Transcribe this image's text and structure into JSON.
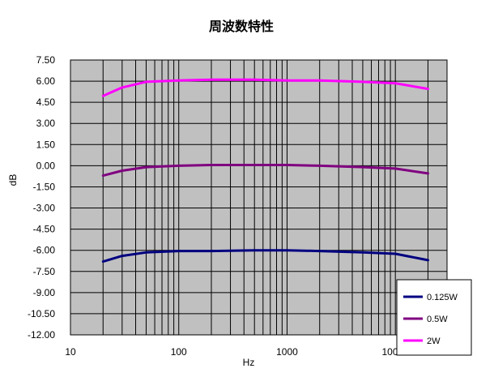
{
  "chart_data": {
    "type": "line",
    "title": "周波数特性",
    "xlabel": "Hz",
    "ylabel": "dB",
    "x_scale": "log",
    "xlim": [
      10,
      30000
    ],
    "ylim": [
      -12,
      7.5
    ],
    "x_tick_labels": [
      "10",
      "100",
      "1000",
      "10000"
    ],
    "y_tick_labels": [
      "7.50",
      "6.00",
      "4.50",
      "3.00",
      "1.50",
      "0.00",
      "-1.50",
      "-3.00",
      "-4.50",
      "-6.00",
      "-7.50",
      "-9.00",
      "-10.50",
      "-12.00"
    ],
    "grid": true,
    "legend_position": "bottom-right",
    "series": [
      {
        "name": "0.125W",
        "color": "#000080",
        "x": [
          20,
          30,
          50,
          100,
          200,
          500,
          1000,
          2000,
          5000,
          10000,
          20000
        ],
        "y": [
          -6.8,
          -6.4,
          -6.15,
          -6.05,
          -6.05,
          -6.0,
          -6.0,
          -6.05,
          -6.15,
          -6.25,
          -6.7
        ]
      },
      {
        "name": "0.5W",
        "color": "#800080",
        "x": [
          20,
          30,
          50,
          100,
          200,
          500,
          1000,
          2000,
          5000,
          10000,
          20000
        ],
        "y": [
          -0.7,
          -0.35,
          -0.1,
          0.0,
          0.05,
          0.05,
          0.05,
          0.0,
          -0.1,
          -0.2,
          -0.55
        ]
      },
      {
        "name": "2W",
        "color": "#ff00ff",
        "x": [
          20,
          30,
          50,
          100,
          200,
          500,
          1000,
          2000,
          5000,
          10000,
          20000
        ],
        "y": [
          4.95,
          5.55,
          5.95,
          6.05,
          6.1,
          6.1,
          6.05,
          6.05,
          5.95,
          5.85,
          5.45
        ]
      }
    ]
  }
}
